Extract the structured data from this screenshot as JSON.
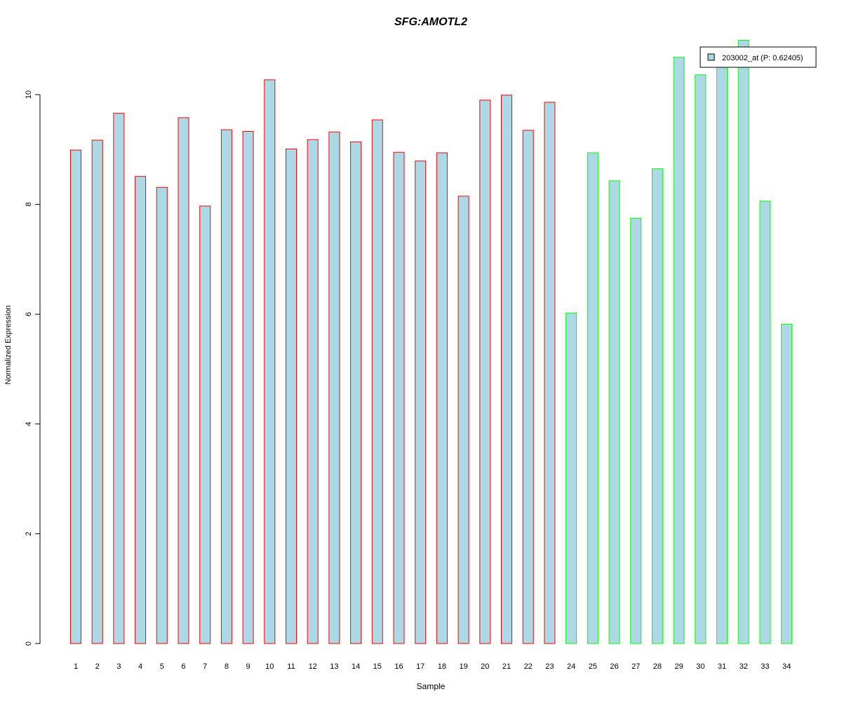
{
  "chart_data": {
    "type": "bar",
    "title": "SFG:AMOTL2",
    "xlabel": "Sample",
    "ylabel": "Normalized Expression",
    "ylim": [
      0,
      11
    ],
    "y_ticks": [
      0,
      2,
      4,
      6,
      8,
      10
    ],
    "grid": false,
    "legend_position": "top-right",
    "categories": [
      "1",
      "2",
      "3",
      "4",
      "5",
      "6",
      "7",
      "8",
      "9",
      "10",
      "11",
      "12",
      "13",
      "14",
      "15",
      "16",
      "17",
      "18",
      "19",
      "20",
      "21",
      "22",
      "23",
      "24",
      "25",
      "26",
      "27",
      "28",
      "29",
      "30",
      "31",
      "32",
      "33",
      "34"
    ],
    "series": [
      {
        "name": "203002_at (P: 0.62405)",
        "values": [
          8.99,
          9.17,
          9.66,
          8.51,
          8.31,
          9.58,
          7.97,
          9.36,
          9.33,
          10.27,
          9.01,
          9.18,
          9.32,
          9.14,
          9.54,
          8.95,
          8.79,
          8.94,
          8.15,
          9.9,
          9.99,
          9.35,
          9.86,
          6.02,
          8.94,
          8.43,
          7.75,
          8.65,
          10.68,
          10.36,
          10.66,
          10.99,
          8.06,
          5.82
        ],
        "fill_color": "#add8e6",
        "group_border_colors": [
          "#ff0000",
          "#ff0000",
          "#ff0000",
          "#ff0000",
          "#ff0000",
          "#ff0000",
          "#ff0000",
          "#ff0000",
          "#ff0000",
          "#ff0000",
          "#ff0000",
          "#ff0000",
          "#ff0000",
          "#ff0000",
          "#ff0000",
          "#ff0000",
          "#ff0000",
          "#ff0000",
          "#ff0000",
          "#ff0000",
          "#ff0000",
          "#ff0000",
          "#ff0000",
          "#00ff00",
          "#00ff00",
          "#00ff00",
          "#00ff00",
          "#00ff00",
          "#00ff00",
          "#00ff00",
          "#00ff00",
          "#00ff00",
          "#00ff00",
          "#00ff00"
        ]
      }
    ],
    "colors": {
      "title": "#0000cc",
      "axis": "#000000",
      "legend_border": "#000000"
    }
  }
}
